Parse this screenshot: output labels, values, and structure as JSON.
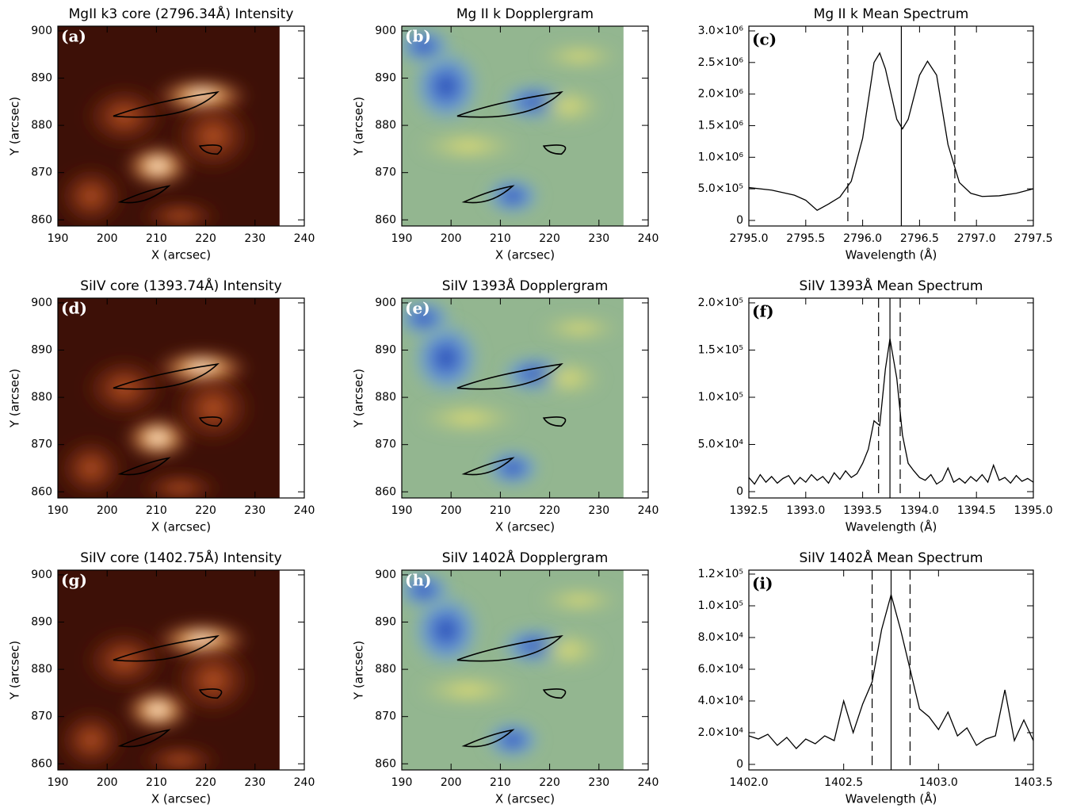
{
  "chart_data": [
    {
      "type": "image",
      "style": "intensity",
      "title": "MgII k3 core (2796.34Å) Intensity",
      "panel": "(a)",
      "xlabel": "X (arcsec)",
      "ylabel": "Y (arcsec)",
      "xlim": [
        190,
        240
      ],
      "ylim": [
        858.7,
        901
      ],
      "xticks": [
        190,
        200,
        210,
        220,
        230,
        240
      ],
      "yticks": [
        860,
        870,
        880,
        890,
        900
      ]
    },
    {
      "type": "image",
      "style": "doppler",
      "title": "Mg II k Dopplergram",
      "panel": "(b)",
      "xlabel": "X (arcsec)",
      "ylabel": "Y (arcsec)",
      "xlim": [
        190,
        240
      ],
      "ylim": [
        858.7,
        901
      ],
      "xticks": [
        190,
        200,
        210,
        220,
        230,
        240
      ],
      "yticks": [
        860,
        870,
        880,
        890,
        900
      ]
    },
    {
      "type": "line",
      "title": "Mg II k Mean Spectrum",
      "panel": "(c)",
      "xlabel": "Wavelength (Å)",
      "color": "#000000",
      "x": [
        2795.0,
        2795.2,
        2795.4,
        2795.5,
        2795.6,
        2795.7,
        2795.8,
        2795.9,
        2796.0,
        2796.1,
        2796.15,
        2796.2,
        2796.3,
        2796.35,
        2796.4,
        2796.5,
        2796.57,
        2796.65,
        2796.75,
        2796.85,
        2796.95,
        2797.05,
        2797.2,
        2797.35,
        2797.5
      ],
      "values": [
        520000,
        480000,
        400000,
        320000,
        160000,
        260000,
        370000,
        620000,
        1300000,
        2500000,
        2650000,
        2400000,
        1600000,
        1450000,
        1600000,
        2300000,
        2520000,
        2300000,
        1200000,
        600000,
        430000,
        380000,
        390000,
        430000,
        500000
      ],
      "markers": [
        {
          "value": 2795.87,
          "style": "dashed"
        },
        {
          "value": 2796.34,
          "style": "solid"
        },
        {
          "value": 2796.81,
          "style": "dashed"
        }
      ],
      "xlim": [
        2795.0,
        2797.5
      ],
      "ylim": [
        -88000,
        3075000
      ],
      "xticks": [
        {
          "value": 2795,
          "label": "2795.0"
        },
        2795.5,
        {
          "value": 2796,
          "label": "2796.0"
        },
        2796.5,
        {
          "value": 2797,
          "label": "2797.0"
        },
        2797.5
      ],
      "yticks": [
        0,
        {
          "value": 500000,
          "label": "5.0×10⁵"
        },
        {
          "value": 1000000,
          "label": "1.0×10⁶"
        },
        {
          "value": 1500000,
          "label": "1.5×10⁶"
        },
        {
          "value": 2000000,
          "label": "2.0×10⁶"
        },
        {
          "value": 2500000,
          "label": "2.5×10⁶"
        },
        {
          "value": 3000000,
          "label": "3.0×10⁶"
        }
      ]
    },
    {
      "type": "image",
      "style": "intensity",
      "title": "SiIV core (1393.74Å) Intensity",
      "panel": "(d)",
      "xlabel": "X (arcsec)",
      "ylabel": "Y (arcsec)",
      "xlim": [
        190,
        240
      ],
      "ylim": [
        858.7,
        901
      ],
      "xticks": [
        190,
        200,
        210,
        220,
        230,
        240
      ],
      "yticks": [
        860,
        870,
        880,
        890,
        900
      ]
    },
    {
      "type": "image",
      "style": "doppler",
      "title": "SiIV 1393Å Dopplergram",
      "panel": "(e)",
      "xlabel": "X (arcsec)",
      "ylabel": "Y (arcsec)",
      "xlim": [
        190,
        240
      ],
      "ylim": [
        858.7,
        901
      ],
      "xticks": [
        190,
        200,
        210,
        220,
        230,
        240
      ],
      "yticks": [
        860,
        870,
        880,
        890,
        900
      ]
    },
    {
      "type": "line",
      "title": "SiIV 1393Å Mean Spectrum",
      "panel": "(f)",
      "xlabel": "Wavelength (Å)",
      "color": "#000000",
      "x": [
        1392.5,
        1392.55,
        1392.6,
        1392.65,
        1392.7,
        1392.75,
        1392.8,
        1392.85,
        1392.9,
        1392.95,
        1393.0,
        1393.05,
        1393.1,
        1393.15,
        1393.2,
        1393.25,
        1393.3,
        1393.35,
        1393.4,
        1393.45,
        1393.5,
        1393.55,
        1393.6,
        1393.65,
        1393.7,
        1393.74,
        1393.8,
        1393.85,
        1393.9,
        1393.95,
        1394.0,
        1394.05,
        1394.1,
        1394.15,
        1394.2,
        1394.25,
        1394.3,
        1394.35,
        1394.4,
        1394.45,
        1394.5,
        1394.55,
        1394.6,
        1394.65,
        1394.7,
        1394.75,
        1394.8,
        1394.85,
        1394.9,
        1394.95,
        1395.0
      ],
      "values": [
        15000,
        8000,
        18000,
        10000,
        16000,
        9000,
        14000,
        17000,
        8000,
        15000,
        10000,
        18000,
        12000,
        16000,
        9000,
        20000,
        13000,
        22000,
        15000,
        19000,
        30000,
        45000,
        75000,
        70000,
        130000,
        162000,
        120000,
        60000,
        30000,
        22000,
        15000,
        12000,
        18000,
        8000,
        12000,
        25000,
        10000,
        14000,
        9000,
        16000,
        11000,
        18000,
        10000,
        28000,
        12000,
        15000,
        9000,
        17000,
        11000,
        14000,
        10000
      ],
      "markers": [
        {
          "value": 1393.64,
          "style": "dashed"
        },
        {
          "value": 1393.74,
          "style": "solid"
        },
        {
          "value": 1393.83,
          "style": "dashed"
        }
      ],
      "xlim": [
        1392.5,
        1395.0
      ],
      "ylim": [
        -6700,
        205000
      ],
      "xticks": [
        1392.5,
        {
          "value": 1393,
          "label": "1393.0"
        },
        1393.5,
        {
          "value": 1394,
          "label": "1394.0"
        },
        1394.5,
        {
          "value": 1395,
          "label": "1395.0"
        }
      ],
      "yticks": [
        0,
        {
          "value": 50000,
          "label": "5.0×10⁴"
        },
        {
          "value": 100000,
          "label": "1.0×10⁵"
        },
        {
          "value": 150000,
          "label": "1.5×10⁵"
        },
        {
          "value": 200000,
          "label": "2.0×10⁵"
        }
      ]
    },
    {
      "type": "image",
      "style": "intensity",
      "title": "SiIV core (1402.75Å) Intensity",
      "panel": "(g)",
      "xlabel": "X (arcsec)",
      "ylabel": "Y (arcsec)",
      "xlim": [
        190,
        240
      ],
      "ylim": [
        858.7,
        901
      ],
      "xticks": [
        190,
        200,
        210,
        220,
        230,
        240
      ],
      "yticks": [
        860,
        870,
        880,
        890,
        900
      ]
    },
    {
      "type": "image",
      "style": "doppler",
      "title": "SiIV 1402Å Dopplergram",
      "panel": "(h)",
      "xlabel": "X (arcsec)",
      "ylabel": "Y (arcsec)",
      "xlim": [
        190,
        240
      ],
      "ylim": [
        858.7,
        901
      ],
      "xticks": [
        190,
        200,
        210,
        220,
        230,
        240
      ],
      "yticks": [
        860,
        870,
        880,
        890,
        900
      ]
    },
    {
      "type": "line",
      "title": "SiIV 1402Å Mean Spectrum",
      "panel": "(i)",
      "xlabel": "Wavelength (Å)",
      "color": "#000000",
      "x": [
        1402.0,
        1402.05,
        1402.1,
        1402.15,
        1402.2,
        1402.25,
        1402.3,
        1402.35,
        1402.4,
        1402.45,
        1402.5,
        1402.55,
        1402.6,
        1402.65,
        1402.7,
        1402.75,
        1402.8,
        1402.85,
        1402.9,
        1402.95,
        1403.0,
        1403.05,
        1403.1,
        1403.15,
        1403.2,
        1403.25,
        1403.3,
        1403.35,
        1403.4,
        1403.45,
        1403.5
      ],
      "values": [
        18000,
        16000,
        19000,
        12000,
        17000,
        10000,
        16000,
        13000,
        18000,
        15000,
        40000,
        20000,
        38000,
        52000,
        85000,
        107000,
        85000,
        60000,
        35000,
        30000,
        22000,
        33000,
        18000,
        23000,
        12000,
        16000,
        18000,
        47000,
        15000,
        28000,
        15000
      ],
      "markers": [
        {
          "value": 1402.65,
          "style": "dashed"
        },
        {
          "value": 1402.75,
          "style": "solid"
        },
        {
          "value": 1402.85,
          "style": "dashed"
        }
      ],
      "xlim": [
        1402.0,
        1403.5
      ],
      "ylim": [
        -3500,
        122500
      ],
      "xticks": [
        {
          "value": 1402,
          "label": "1402.0"
        },
        1402.5,
        {
          "value": 1403,
          "label": "1403.0"
        },
        1403.5
      ],
      "yticks": [
        0,
        {
          "value": 20000,
          "label": "2.0×10⁴"
        },
        {
          "value": 40000,
          "label": "4.0×10⁴"
        },
        {
          "value": 60000,
          "label": "6.0×10⁴"
        },
        {
          "value": 80000,
          "label": "8.0×10⁴"
        },
        {
          "value": 100000,
          "label": "1.0×10⁵"
        },
        {
          "value": 120000,
          "label": "1.2×10⁵"
        }
      ]
    }
  ]
}
